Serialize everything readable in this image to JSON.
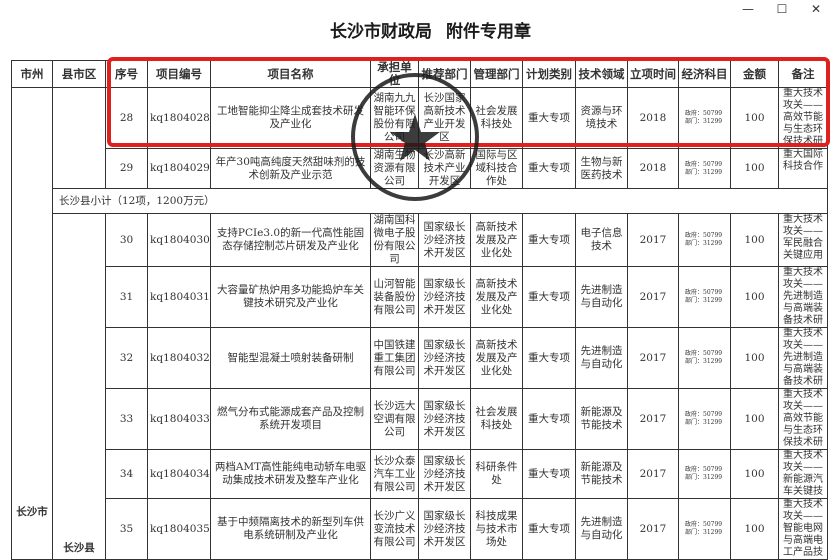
{
  "window": {
    "controls": [
      "minimize-icon",
      "maximize-icon",
      "close-icon"
    ]
  },
  "headers": [
    "市州",
    "县市区",
    "序号",
    "项目编号",
    "项目名称",
    "承担单位",
    "推荐部门",
    "管理部门",
    "计划类别",
    "技术领域",
    "立项时间",
    "经济科目",
    "金额",
    "备注"
  ],
  "city": "长沙市",
  "county": "长沙县",
  "subtotal": "长沙县小计（12项，1200万元）",
  "rows_top": [
    {
      "no": "28",
      "code": "kq1804028",
      "name": "工地智能抑尘降尘成套技术研发及产业化",
      "unit": "湖南九九智能环保股份有限公司",
      "rec": "长沙国家高新技术产业开发区",
      "mgr": "社会发展科技处",
      "plan": "重大专项",
      "field": "资源与环境技术",
      "year": "2018",
      "econ1": "政府：50799",
      "econ2": "部门：31299",
      "amount": "100",
      "note": "重大技术攻关——高效节能与生态环保技术研"
    },
    {
      "no": "29",
      "code": "kq1804029",
      "name": "年产30吨高纯度天然甜味剂的技术创新及产业示范",
      "unit": "湖南生物资源有限公司",
      "rec": "长沙高新技术产业开发区",
      "mgr": "国际与区域科技合作处",
      "plan": "重大专项",
      "field": "生物与新医药技术",
      "year": "2018",
      "econ1": "政府：50799",
      "econ2": "部门：31299",
      "amount": "100",
      "note": "重大国际科技合作"
    }
  ],
  "rows_bottom": [
    {
      "no": "30",
      "code": "kq1804030",
      "name": "支持PCIe3.0的新一代高性能固态存储控制芯片研发及产业化",
      "unit": "湖南国科微电子股份有限公司",
      "rec": "国家级长沙经济技术开发区",
      "mgr": "高新技术发展及产业化处",
      "plan": "重大专项",
      "field": "电子信息技术",
      "year": "2017",
      "econ1": "政府：50799",
      "econ2": "部门：31299",
      "amount": "100",
      "note": "重大技术攻关——军民融合关键应用"
    },
    {
      "no": "31",
      "code": "kq1804031",
      "name": "大容量矿热炉用多功能捣炉车关键技术研究及产业化",
      "unit": "山河智能装备股份有限公司",
      "rec": "国家级长沙经济技术开发区",
      "mgr": "高新技术发展及产业化处",
      "plan": "重大专项",
      "field": "先进制造与自动化",
      "year": "2017",
      "econ1": "政府：50799",
      "econ2": "部门：31299",
      "amount": "100",
      "note": "重大技术攻关——先进制造与高端装备技术研"
    },
    {
      "no": "32",
      "code": "kq1804032",
      "name": "智能型混凝土喷射装备研制",
      "unit": "中国铁建重工集团有限公司",
      "rec": "国家级长沙经济技术开发区",
      "mgr": "高新技术发展及产业化处",
      "plan": "重大专项",
      "field": "先进制造与自动化",
      "year": "2017",
      "econ1": "政府：50799",
      "econ2": "部门：31299",
      "amount": "100",
      "note": "重大技术攻关——先进制造与高端装备技术研"
    },
    {
      "no": "33",
      "code": "kq1804033",
      "name": "燃气分布式能源成套产品及控制系统开发项目",
      "unit": "长沙远大空调有限公司",
      "rec": "国家级长沙经济技术开发区",
      "mgr": "社会发展科技处",
      "plan": "重大专项",
      "field": "新能源及节能技术",
      "year": "2017",
      "econ1": "政府：50799",
      "econ2": "部门：31299",
      "amount": "100",
      "note": "重大技术攻关——高效节能与生态环保技术研"
    },
    {
      "no": "34",
      "code": "kq1804034",
      "name": "两档AMT高性能纯电动轿车电驱动集成技术研发及整车产业化",
      "unit": "长沙众泰汽车工业有限公司",
      "rec": "国家级长沙经济技术开发区",
      "mgr": "科研条件处",
      "plan": "重大专项",
      "field": "新能源及节能技术",
      "year": "2017",
      "econ1": "政府：50799",
      "econ2": "部门：31299",
      "amount": "100",
      "note": "重大技术攻关——新能源汽车关键技"
    },
    {
      "no": "35",
      "code": "kq1804035",
      "name": "基于中频隔离技术的新型列车供电系统研制及产业化",
      "unit": "长沙广义变流技术有限公司",
      "rec": "国家级长沙经济技术开发区",
      "mgr": "科技成果与技术市场处",
      "plan": "重大专项",
      "field": "先进制造与自动化",
      "year": "2017",
      "econ1": "政府：50799",
      "econ2": "部门：31299",
      "amount": "100",
      "note": "重大技术攻关——智能电网与高端电工产品技"
    }
  ],
  "stamp": {
    "text": "长沙市财政局",
    "sub": "附件专用章",
    "color": "#1a1a1a"
  },
  "highlight_color": "#e0201c"
}
